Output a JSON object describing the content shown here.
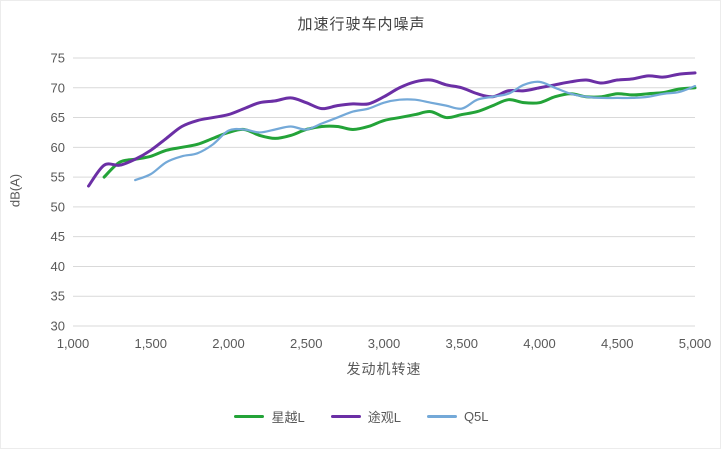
{
  "chart_data": {
    "type": "line",
    "title": "加速行驶车内噪声",
    "xlabel": "发动机转速",
    "ylabel": "dB(A)",
    "xlim": [
      1000,
      5000
    ],
    "ylim": [
      30,
      75
    ],
    "x_tick_step": 500,
    "y_tick_step": 5,
    "grid": "horizontal",
    "legend_position": "bottom",
    "colors": {
      "grid": "#d9d9d9",
      "axis_text": "#595959",
      "title_text": "#404040"
    },
    "series": [
      {
        "name": "星越L",
        "color": "#23a338",
        "width": 3,
        "points": [
          [
            1200,
            55
          ],
          [
            1300,
            57.5
          ],
          [
            1400,
            58
          ],
          [
            1500,
            58.5
          ],
          [
            1600,
            59.5
          ],
          [
            1700,
            60
          ],
          [
            1800,
            60.5
          ],
          [
            1900,
            61.5
          ],
          [
            2000,
            62.5
          ],
          [
            2100,
            63
          ],
          [
            2200,
            62
          ],
          [
            2300,
            61.5
          ],
          [
            2400,
            62
          ],
          [
            2500,
            63
          ],
          [
            2600,
            63.5
          ],
          [
            2700,
            63.5
          ],
          [
            2800,
            63
          ],
          [
            2900,
            63.5
          ],
          [
            3000,
            64.5
          ],
          [
            3100,
            65
          ],
          [
            3200,
            65.5
          ],
          [
            3300,
            66
          ],
          [
            3400,
            65
          ],
          [
            3500,
            65.5
          ],
          [
            3600,
            66
          ],
          [
            3700,
            67
          ],
          [
            3800,
            68
          ],
          [
            3900,
            67.5
          ],
          [
            4000,
            67.5
          ],
          [
            4100,
            68.5
          ],
          [
            4200,
            69
          ],
          [
            4300,
            68.5
          ],
          [
            4400,
            68.5
          ],
          [
            4500,
            69
          ],
          [
            4600,
            68.8
          ],
          [
            4700,
            69
          ],
          [
            4800,
            69.2
          ],
          [
            4900,
            69.8
          ],
          [
            5000,
            70
          ]
        ]
      },
      {
        "name": "途观L",
        "color": "#6b2fa5",
        "width": 3,
        "points": [
          [
            1100,
            53.5
          ],
          [
            1200,
            57
          ],
          [
            1300,
            57
          ],
          [
            1400,
            58
          ],
          [
            1500,
            59.5
          ],
          [
            1600,
            61.5
          ],
          [
            1700,
            63.5
          ],
          [
            1800,
            64.5
          ],
          [
            1900,
            65
          ],
          [
            2000,
            65.5
          ],
          [
            2100,
            66.5
          ],
          [
            2200,
            67.5
          ],
          [
            2300,
            67.8
          ],
          [
            2400,
            68.3
          ],
          [
            2500,
            67.5
          ],
          [
            2600,
            66.5
          ],
          [
            2700,
            67
          ],
          [
            2800,
            67.3
          ],
          [
            2900,
            67.3
          ],
          [
            3000,
            68.5
          ],
          [
            3100,
            70
          ],
          [
            3200,
            71
          ],
          [
            3300,
            71.3
          ],
          [
            3400,
            70.5
          ],
          [
            3500,
            70
          ],
          [
            3600,
            69
          ],
          [
            3700,
            68.5
          ],
          [
            3800,
            69.5
          ],
          [
            3900,
            69.5
          ],
          [
            4000,
            70
          ],
          [
            4100,
            70.5
          ],
          [
            4200,
            71
          ],
          [
            4300,
            71.3
          ],
          [
            4400,
            70.8
          ],
          [
            4500,
            71.3
          ],
          [
            4600,
            71.5
          ],
          [
            4700,
            72
          ],
          [
            4800,
            71.8
          ],
          [
            4900,
            72.3
          ],
          [
            5000,
            72.5
          ]
        ]
      },
      {
        "name": "Q5L",
        "color": "#74a9d8",
        "width": 2.25,
        "points": [
          [
            1400,
            54.5
          ],
          [
            1500,
            55.5
          ],
          [
            1600,
            57.5
          ],
          [
            1700,
            58.5
          ],
          [
            1800,
            59
          ],
          [
            1900,
            60.5
          ],
          [
            2000,
            62.8
          ],
          [
            2100,
            63
          ],
          [
            2200,
            62.5
          ],
          [
            2300,
            63
          ],
          [
            2400,
            63.5
          ],
          [
            2500,
            63
          ],
          [
            2600,
            64
          ],
          [
            2700,
            65
          ],
          [
            2800,
            66
          ],
          [
            2900,
            66.5
          ],
          [
            3000,
            67.5
          ],
          [
            3100,
            68
          ],
          [
            3200,
            68
          ],
          [
            3300,
            67.5
          ],
          [
            3400,
            67
          ],
          [
            3500,
            66.5
          ],
          [
            3600,
            68
          ],
          [
            3700,
            68.5
          ],
          [
            3800,
            69
          ],
          [
            3900,
            70.5
          ],
          [
            4000,
            71
          ],
          [
            4100,
            70
          ],
          [
            4200,
            69
          ],
          [
            4300,
            68.5
          ],
          [
            4400,
            68.3
          ],
          [
            4500,
            68.3
          ],
          [
            4600,
            68.3
          ],
          [
            4700,
            68.5
          ],
          [
            4800,
            69
          ],
          [
            4900,
            69.3
          ],
          [
            5000,
            70.3
          ]
        ]
      }
    ]
  }
}
